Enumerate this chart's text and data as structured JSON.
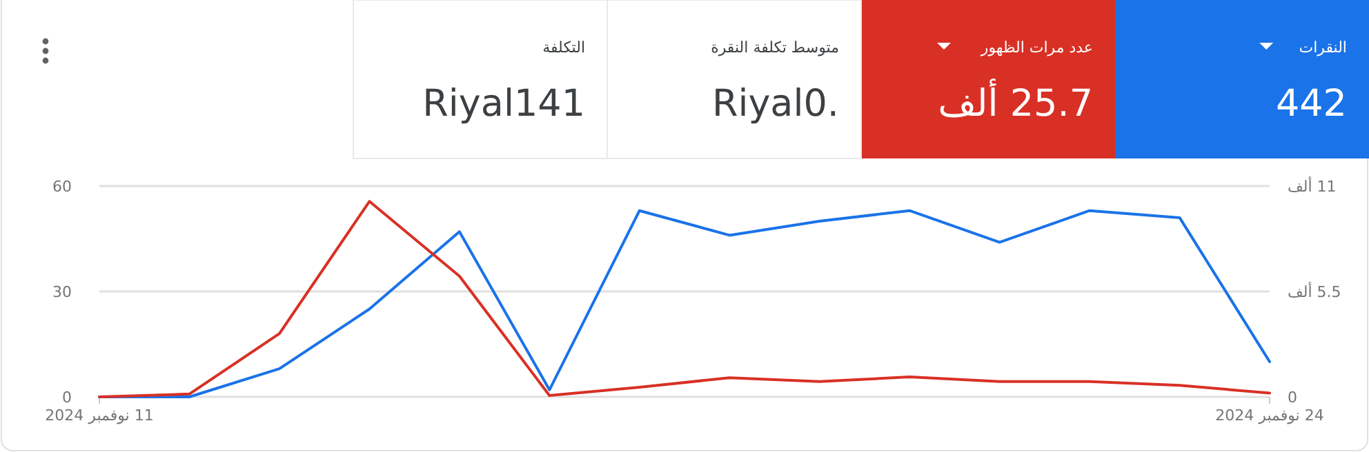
{
  "chart_data": [
    {
      "type": "other",
      "categories": [
        "النقرات",
        "عدد مرات الظهور",
        "متوسط تكلفة النقرة",
        "التكلفة"
      ],
      "value_labels": [
        "442",
        "25.7 ألف",
        "Riyal0.",
        "Riyal141"
      ],
      "colors": [
        "#1a73e8",
        "#d93025",
        "#ffffff",
        "#ffffff"
      ]
    },
    {
      "type": "line",
      "x": [
        "2024-11-11",
        "2024-11-12",
        "2024-11-13",
        "2024-11-14",
        "2024-11-15",
        "2024-11-16",
        "2024-11-17",
        "2024-11-18",
        "2024-11-19",
        "2024-11-20",
        "2024-11-21",
        "2024-11-22",
        "2024-11-23",
        "2024-11-24"
      ],
      "series": [
        {
          "color": "#1a73e8",
          "values": [
            0,
            0,
            8,
            25,
            47,
            2,
            53,
            46,
            50,
            53,
            44,
            53,
            51,
            10
          ]
        },
        {
          "color": "#d93025",
          "axis": "y2",
          "values": [
            0,
            0.15,
            3.3,
            10.2,
            6.3,
            0.07,
            0.5,
            1.0,
            0.8,
            1.04,
            0.8,
            0.8,
            0.6,
            0.2
          ]
        }
      ],
      "xlim": [
        "2024-11-11",
        "2024-11-24"
      ],
      "xticks": [
        {
          "value": "2024-11-11",
          "label": "11 نوفمبر 2024"
        },
        {
          "value": "2024-11-24",
          "label": "24 نوفمبر 2024"
        }
      ],
      "ylim": [
        0,
        60
      ],
      "yticks": [
        0,
        30,
        60
      ],
      "y2lim": [
        0,
        11
      ],
      "y2ticks": [
        0,
        {
          "value": 5.5,
          "label": "5.5 ألف"
        },
        {
          "value": 11,
          "label": "11 ألف"
        }
      ],
      "grid": "y",
      "line_style": "solid"
    }
  ]
}
